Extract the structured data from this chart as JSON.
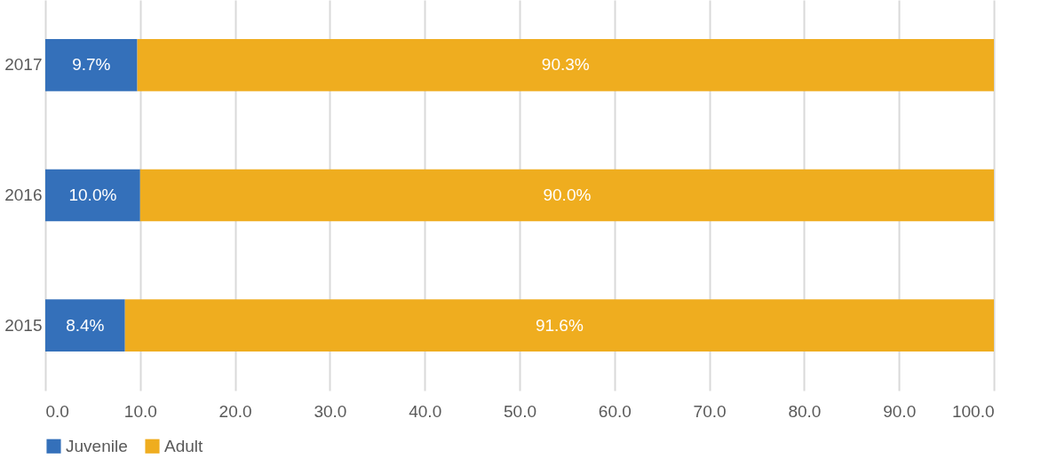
{
  "chart_data": {
    "type": "bar",
    "orientation": "horizontal",
    "stacked": true,
    "categories": [
      "2017",
      "2016",
      "2015"
    ],
    "series": [
      {
        "name": "Juvenile",
        "color": "#3470ba",
        "values": [
          9.7,
          10.0,
          8.4
        ],
        "value_labels": [
          "9.7%",
          "10.0%",
          "8.4%"
        ]
      },
      {
        "name": "Adult",
        "color": "#efad1f",
        "values": [
          90.3,
          90.0,
          91.6
        ],
        "value_labels": [
          "90.3%",
          "90.0%",
          "91.6%"
        ]
      }
    ],
    "xlim": [
      0,
      100
    ],
    "xticks": [
      {
        "value": 0,
        "label": "0.0"
      },
      {
        "value": 10,
        "label": "10.0"
      },
      {
        "value": 20,
        "label": "20.0"
      },
      {
        "value": 30,
        "label": "30.0"
      },
      {
        "value": 40,
        "label": "40.0"
      },
      {
        "value": 50,
        "label": "50.0"
      },
      {
        "value": 60,
        "label": "60.0"
      },
      {
        "value": 70,
        "label": "70.0"
      },
      {
        "value": 80,
        "label": "80.0"
      },
      {
        "value": 90,
        "label": "90.0"
      },
      {
        "value": 100,
        "label": "100.0"
      }
    ],
    "grid": "x",
    "legend": "bottom"
  }
}
